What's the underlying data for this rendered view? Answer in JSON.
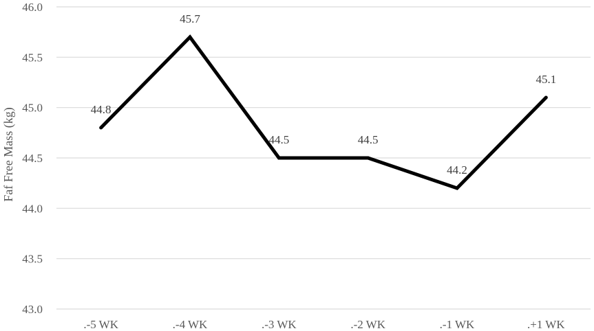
{
  "chart_data": {
    "type": "line",
    "categories": [
      ".-5 WK",
      ".-4 WK",
      ".-3 WK",
      ".-2 WK",
      ".-1 WK",
      ".+1 WK"
    ],
    "series": [
      {
        "values": [
          44.8,
          45.7,
          44.5,
          44.5,
          44.2,
          45.1
        ]
      }
    ],
    "data_labels": [
      "44.8",
      "45.7",
      "44.5",
      "44.5",
      "44.2",
      "45.1"
    ],
    "ylabel": "Faf Free Mass (kg)",
    "xlabel": "",
    "ylim": [
      43.0,
      46.0
    ],
    "yticks": [
      "43.0",
      "43.5",
      "44.0",
      "44.5",
      "45.0",
      "45.5",
      "46.0"
    ],
    "grid": true,
    "line_color": "#000000",
    "grid_color": "#d9d9d9"
  }
}
